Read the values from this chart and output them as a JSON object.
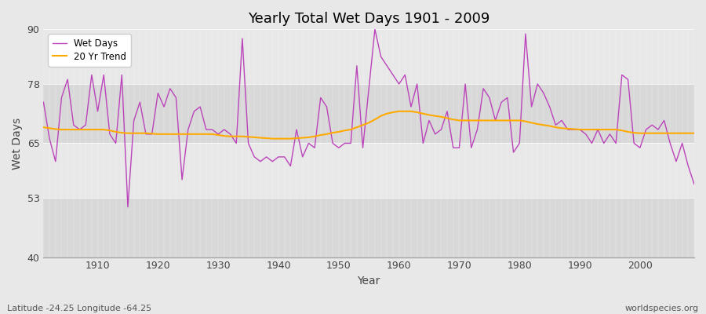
{
  "title": "Yearly Total Wet Days 1901 - 2009",
  "xlabel": "Year",
  "ylabel": "Wet Days",
  "lat_lon_label": "Latitude -24.25 Longitude -64.25",
  "source_label": "worldspecies.org",
  "ylim": [
    40,
    90
  ],
  "yticks": [
    40,
    53,
    65,
    78,
    90
  ],
  "start_year": 1901,
  "end_year": 2009,
  "line_color": "#bb44bb",
  "trend_color": "#ffaa00",
  "bg_color": "#e8e8e8",
  "band_light": "#e8e8e8",
  "band_dark": "#d8d8d8",
  "wet_days": [
    74,
    66,
    61,
    75,
    79,
    69,
    68,
    69,
    80,
    72,
    80,
    67,
    65,
    80,
    51,
    70,
    74,
    67,
    67,
    76,
    73,
    77,
    75,
    57,
    68,
    72,
    73,
    68,
    68,
    67,
    68,
    67,
    65,
    88,
    65,
    62,
    61,
    62,
    61,
    62,
    62,
    60,
    68,
    62,
    65,
    64,
    75,
    73,
    65,
    64,
    65,
    65,
    82,
    64,
    77,
    90,
    84,
    82,
    80,
    78,
    80,
    73,
    78,
    65,
    70,
    67,
    68,
    72,
    64,
    64,
    78,
    64,
    68,
    77,
    75,
    70,
    74,
    75,
    63,
    65,
    89,
    73,
    78,
    76,
    73,
    69,
    70,
    68,
    68,
    68,
    67,
    65,
    68,
    65,
    67,
    65,
    80,
    79,
    65,
    64,
    68,
    69,
    68,
    70,
    65,
    61,
    65,
    60,
    56
  ],
  "trend_days": [
    68.5,
    68.3,
    68.1,
    68.0,
    68.0,
    68.0,
    68.0,
    68.0,
    68.0,
    68.0,
    68.0,
    67.8,
    67.5,
    67.3,
    67.2,
    67.2,
    67.2,
    67.2,
    67.1,
    67.0,
    67.0,
    67.0,
    67.0,
    67.0,
    67.0,
    67.0,
    67.0,
    67.0,
    67.0,
    66.8,
    66.6,
    66.5,
    66.5,
    66.5,
    66.4,
    66.3,
    66.2,
    66.1,
    66.0,
    66.0,
    66.0,
    66.0,
    66.1,
    66.2,
    66.3,
    66.5,
    66.8,
    67.0,
    67.3,
    67.5,
    67.8,
    68.0,
    68.5,
    69.0,
    69.5,
    70.2,
    71.0,
    71.5,
    71.8,
    72.0,
    72.0,
    72.0,
    71.8,
    71.5,
    71.2,
    71.0,
    70.8,
    70.5,
    70.2,
    70.0,
    70.0,
    70.0,
    70.0,
    70.0,
    70.0,
    70.0,
    70.0,
    70.0,
    70.0,
    70.0,
    69.8,
    69.5,
    69.2,
    69.0,
    68.8,
    68.5,
    68.3,
    68.2,
    68.1,
    68.0,
    68.0,
    68.0,
    68.0,
    68.0,
    68.0,
    68.0,
    67.8,
    67.5,
    67.3,
    67.2,
    67.2,
    67.2,
    67.2,
    67.2,
    67.2,
    67.2,
    67.2,
    67.2,
    67.2
  ]
}
